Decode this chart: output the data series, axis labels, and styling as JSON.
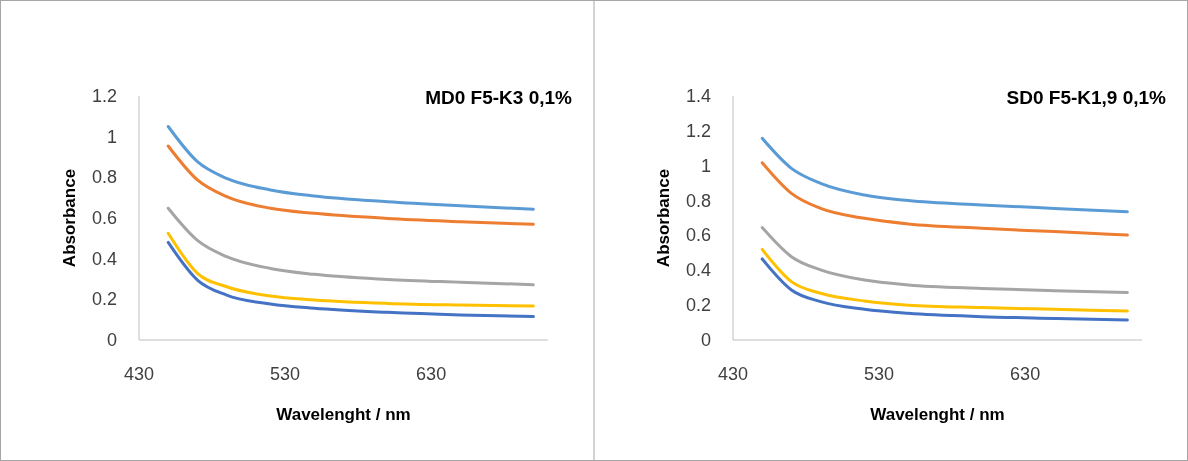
{
  "chart_data": [
    {
      "type": "line",
      "title": "MD0 F5-K3 0,1%",
      "xlabel": "Wavelenght / nm",
      "ylabel": "Absorbance",
      "x": [
        450,
        470,
        490,
        520,
        550,
        600,
        650,
        700
      ],
      "xlim": [
        430,
        710
      ],
      "xticks": [
        430,
        530,
        630
      ],
      "ylim": [
        0,
        1.2
      ],
      "yticks": [
        0,
        0.2,
        0.4,
        0.6,
        0.8,
        1,
        1.2
      ],
      "series": [
        {
          "color": "#5b9bd5",
          "values": [
            1.05,
            0.877,
            0.795,
            0.738,
            0.708,
            0.68,
            0.66,
            0.643
          ]
        },
        {
          "color": "#ed7d31",
          "values": [
            0.954,
            0.787,
            0.705,
            0.648,
            0.623,
            0.598,
            0.582,
            0.569
          ]
        },
        {
          "color": "#a5a5a5",
          "values": [
            0.648,
            0.49,
            0.41,
            0.352,
            0.323,
            0.298,
            0.284,
            0.272
          ]
        },
        {
          "color": "#ffc000",
          "values": [
            0.525,
            0.328,
            0.262,
            0.216,
            0.197,
            0.18,
            0.172,
            0.167
          ]
        },
        {
          "color": "#4472c4",
          "values": [
            0.48,
            0.295,
            0.221,
            0.177,
            0.156,
            0.136,
            0.123,
            0.115
          ]
        }
      ]
    },
    {
      "type": "line",
      "title": "SD0 F5-K1,9 0,1%",
      "xlabel": "Wavelenght / nm",
      "ylabel": "Absorbance",
      "x": [
        450,
        470,
        490,
        520,
        550,
        600,
        650,
        700
      ],
      "xlim": [
        430,
        710
      ],
      "xticks": [
        430,
        530,
        630
      ],
      "ylim": [
        0,
        1.4
      ],
      "yticks": [
        0,
        0.2,
        0.4,
        0.6,
        0.8,
        1,
        1.2,
        1.4
      ],
      "series": [
        {
          "color": "#5b9bd5",
          "values": [
            1.157,
            0.985,
            0.899,
            0.832,
            0.8,
            0.775,
            0.755,
            0.736
          ]
        },
        {
          "color": "#ed7d31",
          "values": [
            1.017,
            0.841,
            0.755,
            0.698,
            0.666,
            0.641,
            0.622,
            0.602
          ]
        },
        {
          "color": "#a5a5a5",
          "values": [
            0.645,
            0.478,
            0.402,
            0.344,
            0.316,
            0.296,
            0.283,
            0.273
          ]
        },
        {
          "color": "#ffc000",
          "values": [
            0.52,
            0.335,
            0.268,
            0.224,
            0.2,
            0.186,
            0.176,
            0.166
          ]
        },
        {
          "color": "#4472c4",
          "values": [
            0.465,
            0.287,
            0.22,
            0.176,
            0.153,
            0.134,
            0.124,
            0.115
          ]
        }
      ]
    }
  ]
}
